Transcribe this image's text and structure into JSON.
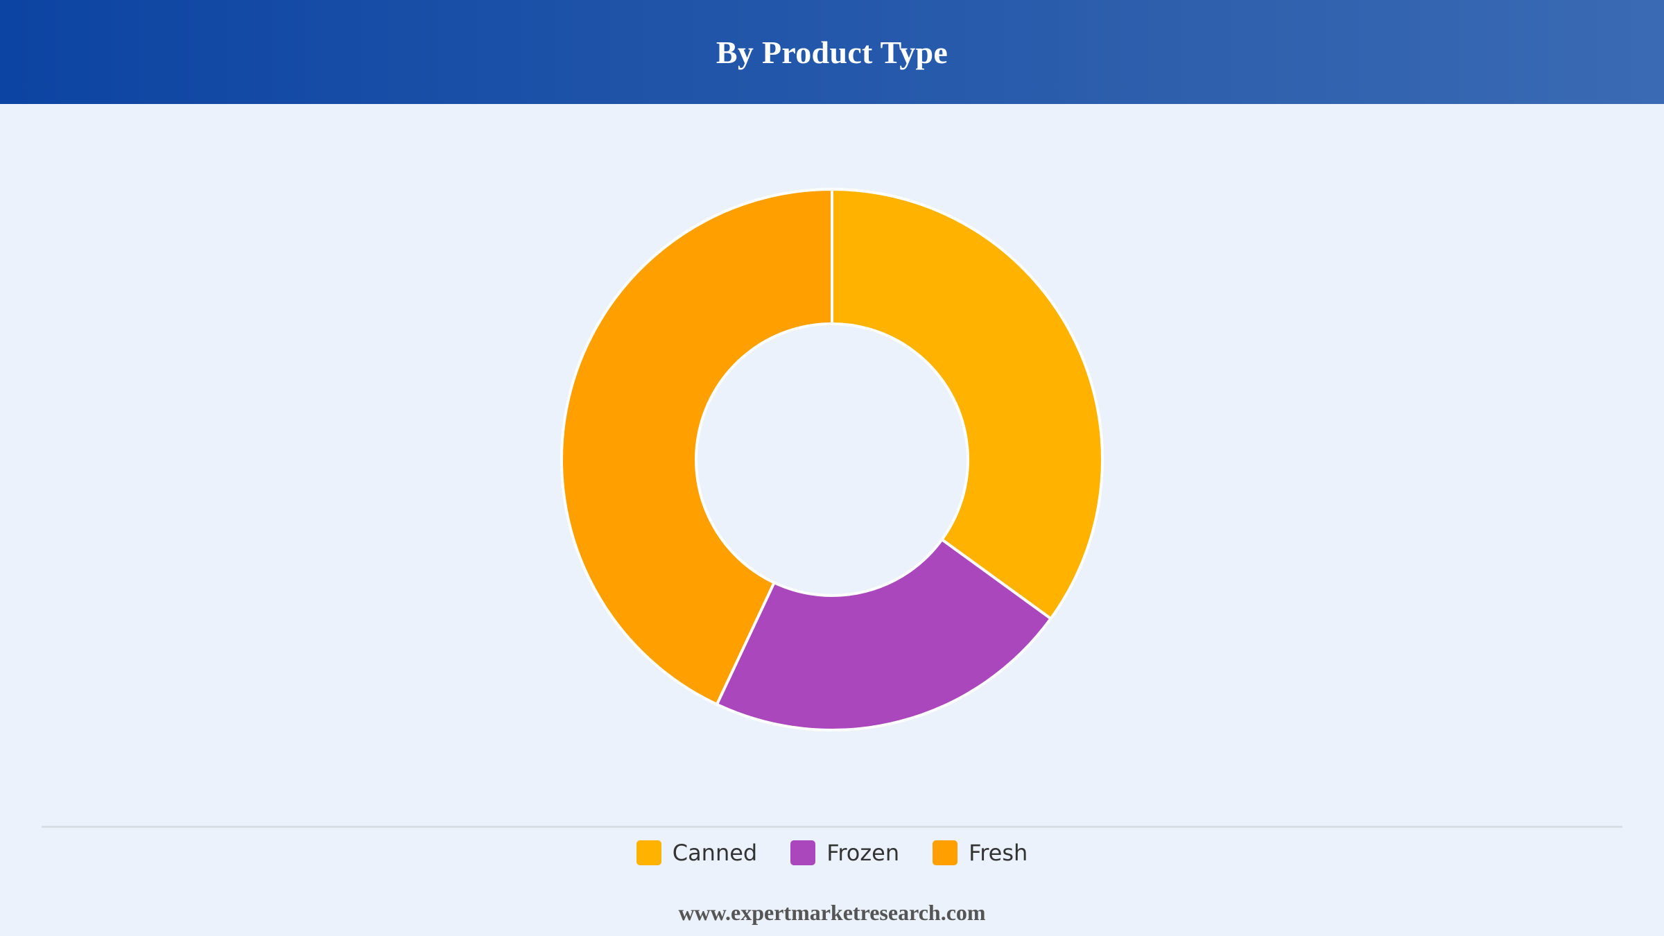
{
  "header": {
    "title": "By Product Type"
  },
  "chart_data": {
    "type": "pie",
    "variant": "donut",
    "categories": [
      "Canned",
      "Frozen",
      "Fresh"
    ],
    "values": [
      35,
      22,
      43
    ],
    "colors": [
      "#ffb300",
      "#ab47bc",
      "#ffa000"
    ],
    "title": "By Product Type",
    "legend_position": "bottom-center",
    "start_angle": "top",
    "direction": "clockwise"
  },
  "legend": {
    "items": [
      {
        "label": "Canned",
        "color": "#ffb300"
      },
      {
        "label": "Frozen",
        "color": "#ab47bc"
      },
      {
        "label": "Fresh",
        "color": "#ffa000"
      }
    ]
  },
  "footer": {
    "source": "www.expertmarketresearch.com"
  }
}
